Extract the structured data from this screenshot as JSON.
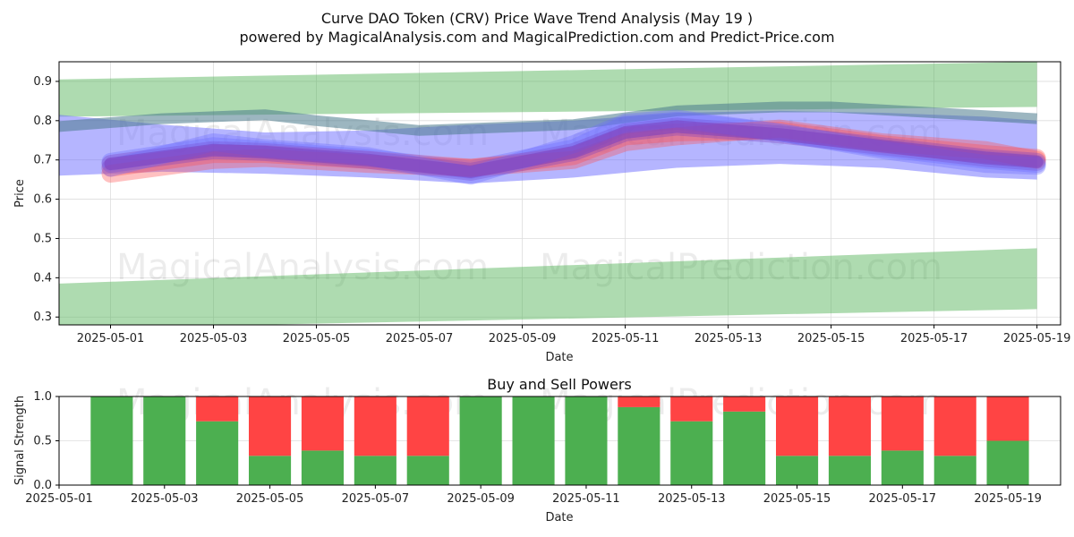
{
  "title": "Curve DAO Token (CRV) Price Wave Trend Analysis (May 19 )",
  "subtitle": "powered by MagicalAnalysis.com and MagicalPrediction.com and Predict-Price.com",
  "watermarks": [
    "MagicalAnalysis.com",
    "MagicalPrediction.com"
  ],
  "colors": {
    "green_band": "#4caf50",
    "blue_band": "#6b6bff",
    "red_line": "#ff4d4d",
    "purple_line": "#7b3fbf",
    "buy": "#4caf50",
    "sell": "#ff4444",
    "teal_line": "#4a7a8c"
  },
  "chart_data": [
    {
      "type": "area",
      "name": "price-wave",
      "xlabel": "Date",
      "ylabel": "Price",
      "x_range": [
        "2025-04-30T00:00",
        "2025-05-19T11:00"
      ],
      "ylim": [
        0.28,
        0.95
      ],
      "y_ticks": [
        0.3,
        0.4,
        0.5,
        0.6,
        0.7,
        0.8,
        0.9
      ],
      "x_ticks": [
        "2025-05-01",
        "2025-05-03",
        "2025-05-05",
        "2025-05-07",
        "2025-05-09",
        "2025-05-11",
        "2025-05-13",
        "2025-05-15",
        "2025-05-17",
        "2025-05-19"
      ],
      "grid": true,
      "green_upper_band": {
        "x": [
          "2025-04-30",
          "2025-05-19"
        ],
        "upper": [
          0.905,
          0.95
        ],
        "lower": [
          0.81,
          0.835
        ]
      },
      "green_lower_band": {
        "x": [
          "2025-04-30",
          "2025-05-19"
        ],
        "upper": [
          0.385,
          0.475
        ],
        "lower": [
          0.27,
          0.32
        ]
      },
      "blue_band": {
        "x": [
          "2025-04-30",
          "2025-05-02",
          "2025-05-04",
          "2025-05-06",
          "2025-05-08",
          "2025-05-10",
          "2025-05-12",
          "2025-05-14",
          "2025-05-16",
          "2025-05-18",
          "2025-05-19"
        ],
        "upper": [
          0.815,
          0.79,
          0.77,
          0.775,
          0.79,
          0.8,
          0.82,
          0.825,
          0.82,
          0.81,
          0.8
        ],
        "lower": [
          0.66,
          0.67,
          0.665,
          0.655,
          0.64,
          0.655,
          0.68,
          0.69,
          0.68,
          0.655,
          0.65
        ]
      },
      "teal_line": {
        "x": [
          "2025-04-30",
          "2025-05-02",
          "2025-05-04",
          "2025-05-05",
          "2025-05-07",
          "2025-05-10",
          "2025-05-12",
          "2025-05-14",
          "2025-05-15",
          "2025-05-17",
          "2025-05-19"
        ],
        "y": [
          0.785,
          0.805,
          0.815,
          0.8,
          0.775,
          0.79,
          0.825,
          0.835,
          0.835,
          0.82,
          0.805
        ]
      },
      "series": [
        {
          "x": [
            "2025-05-01",
            "2025-05-03",
            "2025-05-04",
            "2025-05-06",
            "2025-05-08",
            "2025-05-10",
            "2025-05-11",
            "2025-05-12",
            "2025-05-14",
            "2025-05-16",
            "2025-05-18",
            "2025-05-19"
          ],
          "y": [
            0.68,
            0.715,
            0.715,
            0.7,
            0.68,
            0.71,
            0.76,
            0.77,
            0.775,
            0.74,
            0.715,
            0.705
          ]
        },
        {
          "x": [
            "2025-05-01",
            "2025-05-03",
            "2025-05-04",
            "2025-05-06",
            "2025-05-08",
            "2025-05-10",
            "2025-05-11",
            "2025-05-12",
            "2025-05-14",
            "2025-05-16",
            "2025-05-18",
            "2025-05-19"
          ],
          "y": [
            0.695,
            0.735,
            0.725,
            0.705,
            0.675,
            0.73,
            0.79,
            0.8,
            0.77,
            0.73,
            0.7,
            0.69
          ]
        },
        {
          "x": [
            "2025-05-01",
            "2025-05-03",
            "2025-05-04",
            "2025-05-06",
            "2025-05-08",
            "2025-05-10",
            "2025-05-11",
            "2025-05-12",
            "2025-05-14",
            "2025-05-16",
            "2025-05-18",
            "2025-05-19"
          ],
          "y": [
            0.665,
            0.7,
            0.705,
            0.69,
            0.68,
            0.7,
            0.745,
            0.76,
            0.78,
            0.745,
            0.725,
            0.7
          ]
        },
        {
          "x": [
            "2025-05-01",
            "2025-05-03",
            "2025-05-04",
            "2025-05-06",
            "2025-05-08",
            "2025-05-10",
            "2025-05-11",
            "2025-05-12",
            "2025-05-14",
            "2025-05-16",
            "2025-05-18",
            "2025-05-19"
          ],
          "y": [
            0.69,
            0.725,
            0.72,
            0.7,
            0.67,
            0.72,
            0.77,
            0.785,
            0.765,
            0.735,
            0.705,
            0.695
          ]
        },
        {
          "x": [
            "2025-05-01",
            "2025-05-03",
            "2025-05-04",
            "2025-05-06",
            "2025-05-08",
            "2025-05-10",
            "2025-05-11",
            "2025-05-12",
            "2025-05-14",
            "2025-05-16",
            "2025-05-18",
            "2025-05-19"
          ],
          "y": [
            0.68,
            0.745,
            0.73,
            0.71,
            0.66,
            0.74,
            0.795,
            0.805,
            0.77,
            0.725,
            0.69,
            0.685
          ]
        }
      ]
    },
    {
      "type": "bar",
      "name": "buy-sell-powers",
      "title": "Buy and Sell Powers",
      "xlabel": "Date",
      "ylabel": "Signal Strength",
      "x_range": [
        "2025-05-01T00:00",
        "2025-05-20T00:00"
      ],
      "ylim": [
        0,
        1.0
      ],
      "y_ticks": [
        0.0,
        0.5,
        1.0
      ],
      "x_ticks": [
        "2025-05-01",
        "2025-05-03",
        "2025-05-05",
        "2025-05-07",
        "2025-05-09",
        "2025-05-11",
        "2025-05-13",
        "2025-05-15",
        "2025-05-17",
        "2025-05-19"
      ],
      "categories": [
        "2025-05-02",
        "2025-05-03",
        "2025-05-04",
        "2025-05-05",
        "2025-05-06",
        "2025-05-07",
        "2025-05-08",
        "2025-05-09",
        "2025-05-10",
        "2025-05-11",
        "2025-05-12",
        "2025-05-13",
        "2025-05-14",
        "2025-05-15",
        "2025-05-16",
        "2025-05-17",
        "2025-05-18",
        "2025-05-19"
      ],
      "series": [
        {
          "values": [
            1.0,
            1.0,
            0.72,
            0.33,
            0.39,
            0.33,
            0.33,
            1.0,
            1.0,
            1.0,
            0.88,
            0.72,
            0.83,
            0.33,
            0.33,
            0.39,
            0.33,
            0.5
          ]
        },
        {
          "values": [
            0.0,
            0.0,
            0.28,
            0.67,
            0.61,
            0.67,
            0.67,
            0.0,
            0.0,
            0.0,
            0.12,
            0.28,
            0.17,
            0.67,
            0.67,
            0.61,
            0.67,
            0.5
          ]
        }
      ]
    }
  ]
}
